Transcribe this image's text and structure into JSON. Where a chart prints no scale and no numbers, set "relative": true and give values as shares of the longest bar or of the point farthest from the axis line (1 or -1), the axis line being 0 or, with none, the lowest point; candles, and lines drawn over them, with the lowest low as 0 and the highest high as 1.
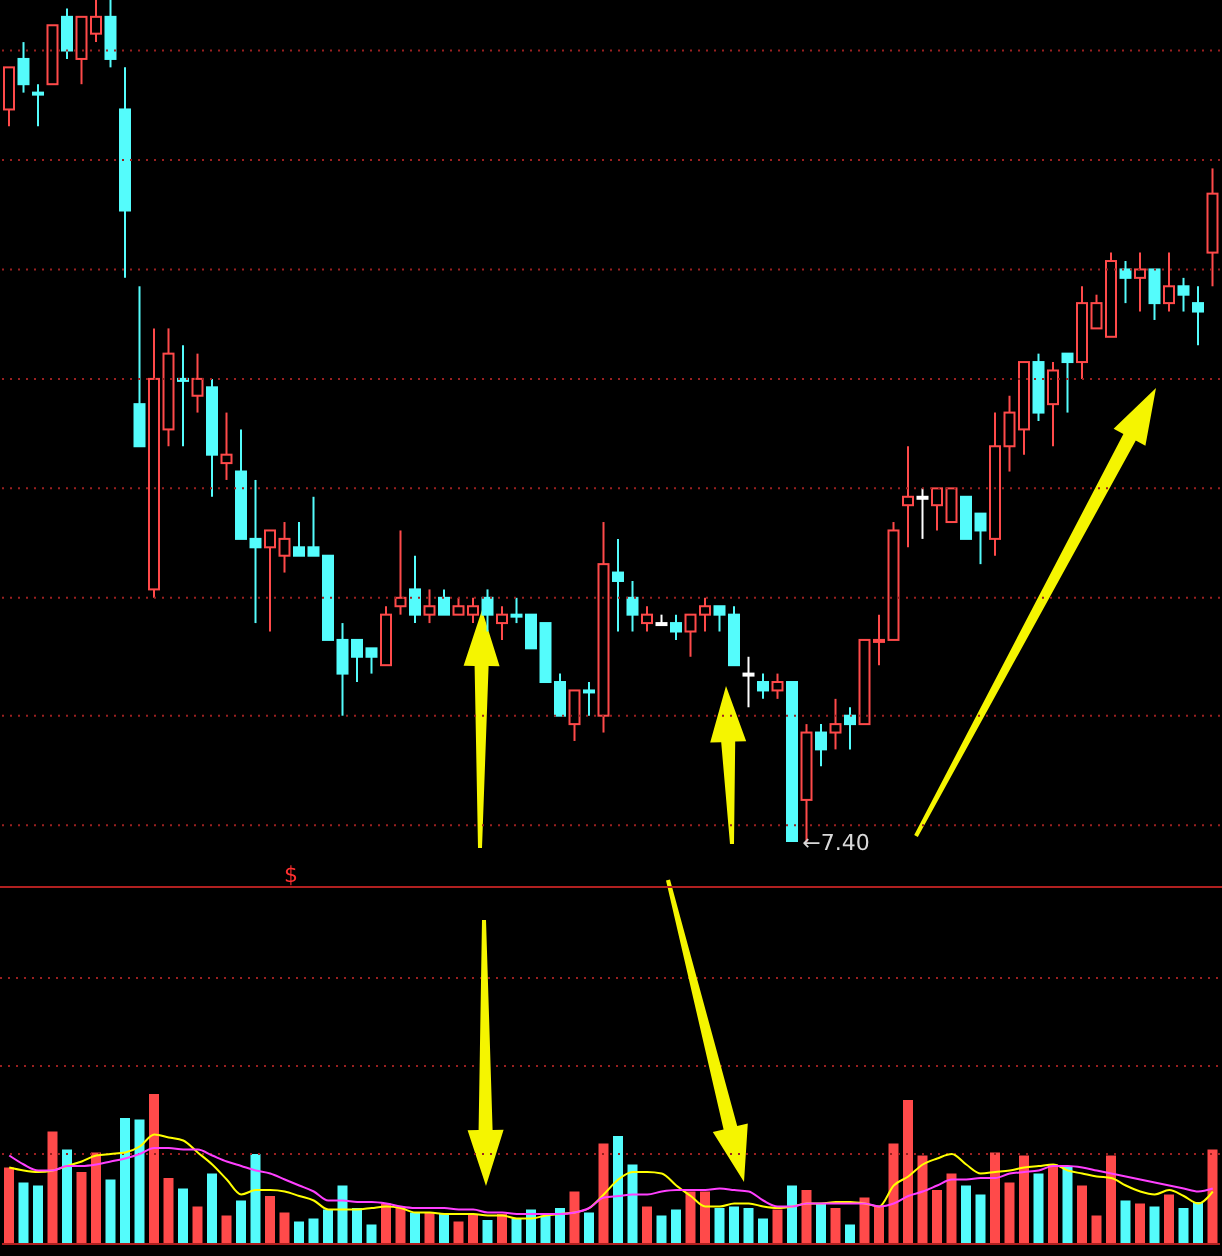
{
  "chart_data": [
    {
      "type": "candlestick",
      "relative": true,
      "tick_labels": false,
      "categories": [
        null,
        null,
        null,
        null,
        null,
        null,
        null,
        null,
        null,
        null,
        null,
        null,
        null,
        null,
        null,
        null,
        null,
        null,
        null,
        null,
        null,
        null,
        null,
        null,
        null,
        null,
        null,
        null,
        null,
        null,
        null,
        null,
        null,
        null,
        null,
        null,
        null,
        null,
        null,
        null,
        null,
        null,
        null,
        null,
        null,
        null,
        null,
        null,
        null,
        null,
        null,
        null,
        null,
        null,
        null,
        null,
        null,
        null,
        null,
        null,
        null,
        null,
        null,
        null,
        null,
        null,
        null,
        null,
        null,
        null,
        null,
        null,
        null,
        null,
        null,
        null,
        null,
        null,
        null,
        null,
        null,
        null,
        null,
        null
      ],
      "ohlc": [
        [
          0.87,
          0.92,
          0.85,
          0.92
        ],
        [
          0.93,
          0.95,
          0.89,
          0.9
        ],
        [
          0.89,
          0.9,
          0.85,
          0.89
        ],
        [
          0.9,
          0.97,
          0.9,
          0.97
        ],
        [
          0.98,
          0.99,
          0.93,
          0.94
        ],
        [
          0.93,
          0.98,
          0.9,
          0.98
        ],
        [
          0.96,
          1,
          0.95,
          0.98
        ],
        [
          0.98,
          1,
          0.92,
          0.93
        ],
        [
          0.87,
          0.92,
          0.67,
          0.75
        ],
        [
          0.52,
          0.66,
          0.47,
          0.47
        ],
        [
          0.3,
          0.61,
          0.29,
          0.55
        ],
        [
          0.49,
          0.61,
          0.47,
          0.58
        ],
        [
          0.55,
          0.59,
          0.47,
          0.55
        ],
        [
          0.53,
          0.58,
          0.51,
          0.55
        ],
        [
          0.54,
          0.55,
          0.41,
          0.46
        ],
        [
          0.45,
          0.51,
          0.43,
          0.46
        ],
        [
          0.44,
          0.49,
          0.36,
          0.36
        ],
        [
          0.36,
          0.43,
          0.26,
          0.35
        ],
        [
          0.35,
          0.37,
          0.25,
          0.37
        ],
        [
          0.34,
          0.38,
          0.32,
          0.36
        ],
        [
          0.35,
          0.38,
          0.34,
          0.34
        ],
        [
          0.35,
          0.41,
          0.34,
          0.34
        ],
        [
          0.34,
          0.34,
          0.24,
          0.24
        ],
        [
          0.24,
          0.26,
          0.15,
          0.2
        ],
        [
          0.24,
          0.24,
          0.19,
          0.22
        ],
        [
          0.23,
          0.23,
          0.2,
          0.22
        ],
        [
          0.21,
          0.28,
          0.21,
          0.27
        ],
        [
          0.28,
          0.37,
          0.27,
          0.29
        ],
        [
          0.3,
          0.34,
          0.26,
          0.27
        ],
        [
          0.27,
          0.3,
          0.26,
          0.28
        ],
        [
          0.29,
          0.3,
          0.27,
          0.27
        ],
        [
          0.27,
          0.29,
          0.27,
          0.28
        ],
        [
          0.27,
          0.29,
          0.26,
          0.28
        ],
        [
          0.29,
          0.3,
          0.25,
          0.27
        ],
        [
          0.26,
          0.28,
          0.24,
          0.27
        ],
        [
          0.27,
          0.29,
          0.26,
          0.27
        ],
        [
          0.27,
          0.27,
          0.23,
          0.23
        ],
        [
          0.26,
          0.26,
          0.19,
          0.19
        ],
        [
          0.19,
          0.2,
          0.15,
          0.15
        ],
        [
          0.14,
          0.18,
          0.12,
          0.18
        ],
        [
          0.18,
          0.19,
          0.15,
          0.18
        ],
        [
          0.15,
          0.38,
          0.13,
          0.33
        ],
        [
          0.32,
          0.36,
          0.25,
          0.31
        ],
        [
          0.29,
          0.31,
          0.25,
          0.27
        ],
        [
          0.26,
          0.28,
          0.25,
          0.27
        ],
        [
          0.26,
          0.27,
          0.26,
          0.26
        ],
        [
          0.26,
          0.27,
          0.24,
          0.25
        ],
        [
          0.25,
          0.27,
          0.22,
          0.27
        ],
        [
          0.27,
          0.29,
          0.25,
          0.28
        ],
        [
          0.28,
          0.28,
          0.25,
          0.27
        ],
        [
          0.27,
          0.28,
          0.21,
          0.21
        ],
        [
          0.2,
          0.22,
          0.16,
          0.2
        ],
        [
          0.19,
          0.2,
          0.17,
          0.18
        ],
        [
          0.18,
          0.2,
          0.17,
          0.19
        ],
        [
          0.19,
          0.19,
          0,
          0
        ],
        [
          0.05,
          0.14,
          0,
          0.13
        ],
        [
          0.13,
          0.14,
          0.09,
          0.11
        ],
        [
          0.13,
          0.17,
          0.11,
          0.14
        ],
        [
          0.15,
          0.16,
          0.11,
          0.14
        ],
        [
          0.14,
          0.24,
          0.14,
          0.24
        ],
        [
          0.24,
          0.27,
          0.21,
          0.24
        ],
        [
          0.24,
          0.38,
          0.24,
          0.37
        ],
        [
          0.4,
          0.47,
          0.35,
          0.41
        ],
        [
          0.41,
          0.42,
          0.36,
          0.41
        ],
        [
          0.4,
          0.42,
          0.37,
          0.42
        ],
        [
          0.38,
          0.42,
          0.38,
          0.42
        ],
        [
          0.41,
          0.41,
          0.36,
          0.36
        ],
        [
          0.39,
          0.39,
          0.33,
          0.37
        ],
        [
          0.36,
          0.51,
          0.34,
          0.47
        ],
        [
          0.47,
          0.53,
          0.44,
          0.51
        ],
        [
          0.49,
          0.57,
          0.46,
          0.57
        ],
        [
          0.57,
          0.58,
          0.5,
          0.51
        ],
        [
          0.52,
          0.57,
          0.47,
          0.56
        ],
        [
          0.58,
          0.58,
          0.51,
          0.57
        ],
        [
          0.57,
          0.66,
          0.55,
          0.64
        ],
        [
          0.61,
          0.65,
          0.61,
          0.64
        ],
        [
          0.6,
          0.7,
          0.6,
          0.69
        ],
        [
          0.68,
          0.69,
          0.64,
          0.67
        ],
        [
          0.67,
          0.7,
          0.63,
          0.68
        ],
        [
          0.68,
          0.68,
          0.62,
          0.64
        ],
        [
          0.64,
          0.7,
          0.63,
          0.66
        ],
        [
          0.66,
          0.67,
          0.63,
          0.65
        ],
        [
          0.64,
          0.66,
          0.59,
          0.63
        ],
        [
          0.7,
          0.8,
          0.66,
          0.77
        ]
      ],
      "colors": [
        "#ff4a4a",
        "#54fcfc",
        "#54fcfc",
        "#ff4a4a",
        "#54fcfc",
        "#ff4a4a",
        "#ff4a4a",
        "#54fcfc",
        "#54fcfc",
        "#54fcfc",
        "#ff4a4a",
        "#ff4a4a",
        "#54fcfc",
        "#ff4a4a",
        "#54fcfc",
        "#ff4a4a",
        "#54fcfc",
        "#54fcfc",
        "#ff4a4a",
        "#ff4a4a",
        "#54fcfc",
        "#54fcfc",
        "#54fcfc",
        "#54fcfc",
        "#54fcfc",
        "#54fcfc",
        "#ff4a4a",
        "#ff4a4a",
        "#54fcfc",
        "#ff4a4a",
        "#54fcfc",
        "#ff4a4a",
        "#ff4a4a",
        "#54fcfc",
        "#ff4a4a",
        "#54fcfc",
        "#54fcfc",
        "#54fcfc",
        "#54fcfc",
        "#ff4a4a",
        "#54fcfc",
        "#ff4a4a",
        "#54fcfc",
        "#54fcfc",
        "#ff4a4a",
        "#ffffff",
        "#54fcfc",
        "#ff4a4a",
        "#ff4a4a",
        "#54fcfc",
        "#54fcfc",
        "#ffffff",
        "#54fcfc",
        "#ff4a4a",
        "#54fcfc",
        "#ff4a4a",
        "#54fcfc",
        "#ff4a4a",
        "#54fcfc",
        "#ff4a4a",
        "#ff4a4a",
        "#ff4a4a",
        "#ff4a4a",
        "#ffffff",
        "#ff4a4a",
        "#ff4a4a",
        "#54fcfc",
        "#54fcfc",
        "#ff4a4a",
        "#ff4a4a",
        "#ff4a4a",
        "#54fcfc",
        "#ff4a4a",
        "#54fcfc",
        "#ff4a4a",
        "#ff4a4a",
        "#ff4a4a",
        "#54fcfc",
        "#ff4a4a",
        "#54fcfc",
        "#ff4a4a",
        "#54fcfc",
        "#54fcfc",
        "#ff4a4a"
      ],
      "ref_lines": [
        {
          "axis": "y",
          "value": 0.94,
          "color": "#9a2020",
          "line_style": "dotted"
        },
        {
          "axis": "y",
          "value": 0.81,
          "color": "#9a2020",
          "line_style": "dotted"
        },
        {
          "axis": "y",
          "value": 0.68,
          "color": "#9a2020",
          "line_style": "dotted"
        },
        {
          "axis": "y",
          "value": 0.55,
          "color": "#9a2020",
          "line_style": "dotted"
        },
        {
          "axis": "y",
          "value": 0.42,
          "color": "#9a2020",
          "line_style": "dotted"
        },
        {
          "axis": "y",
          "value": 0.29,
          "color": "#9a2020",
          "line_style": "dotted"
        },
        {
          "axis": "y",
          "value": 0.15,
          "color": "#9a2020",
          "line_style": "dotted"
        },
        {
          "axis": "y",
          "value": 0.02,
          "color": "#9a2020",
          "line_style": "dotted"
        }
      ],
      "annotations": [
        "←7.40"
      ]
    },
    {
      "type": "bar",
      "relative": true,
      "tick_labels": false,
      "categories": [
        null,
        null,
        null,
        null,
        null,
        null,
        null,
        null,
        null,
        null,
        null,
        null,
        null,
        null,
        null,
        null,
        null,
        null,
        null,
        null,
        null,
        null,
        null,
        null,
        null,
        null,
        null,
        null,
        null,
        null,
        null,
        null,
        null,
        null,
        null,
        null,
        null,
        null,
        null,
        null,
        null,
        null,
        null,
        null,
        null,
        null,
        null,
        null,
        null,
        null,
        null,
        null,
        null,
        null,
        null,
        null,
        null,
        null,
        null,
        null,
        null,
        null,
        null,
        null,
        null,
        null,
        null,
        null,
        null,
        null,
        null,
        null,
        null,
        null,
        null,
        null,
        null,
        null,
        null,
        null,
        null,
        null,
        null,
        null
      ],
      "series": [
        {
          "type": "bar",
          "colors": [
            "#ff4a4a",
            "#54fcfc",
            "#54fcfc",
            "#ff4a4a",
            "#54fcfc",
            "#ff4a4a",
            "#ff4a4a",
            "#54fcfc",
            "#54fcfc",
            "#54fcfc",
            "#ff4a4a",
            "#ff4a4a",
            "#54fcfc",
            "#ff4a4a",
            "#54fcfc",
            "#ff4a4a",
            "#54fcfc",
            "#54fcfc",
            "#ff4a4a",
            "#ff4a4a",
            "#54fcfc",
            "#54fcfc",
            "#54fcfc",
            "#54fcfc",
            "#54fcfc",
            "#54fcfc",
            "#ff4a4a",
            "#ff4a4a",
            "#54fcfc",
            "#ff4a4a",
            "#54fcfc",
            "#ff4a4a",
            "#ff4a4a",
            "#54fcfc",
            "#ff4a4a",
            "#54fcfc",
            "#54fcfc",
            "#54fcfc",
            "#54fcfc",
            "#ff4a4a",
            "#54fcfc",
            "#ff4a4a",
            "#54fcfc",
            "#54fcfc",
            "#ff4a4a",
            "#54fcfc",
            "#54fcfc",
            "#ff4a4a",
            "#ff4a4a",
            "#54fcfc",
            "#54fcfc",
            "#54fcfc",
            "#54fcfc",
            "#ff4a4a",
            "#54fcfc",
            "#ff4a4a",
            "#54fcfc",
            "#ff4a4a",
            "#54fcfc",
            "#ff4a4a",
            "#ff4a4a",
            "#ff4a4a",
            "#ff4a4a",
            "#ff4a4a",
            "#ff4a4a",
            "#ff4a4a",
            "#54fcfc",
            "#54fcfc",
            "#ff4a4a",
            "#ff4a4a",
            "#ff4a4a",
            "#54fcfc",
            "#ff4a4a",
            "#54fcfc",
            "#ff4a4a",
            "#ff4a4a",
            "#ff4a4a",
            "#54fcfc",
            "#ff4a4a",
            "#54fcfc",
            "#ff4a4a",
            "#54fcfc",
            "#54fcfc",
            "#ff4a4a"
          ],
          "values": [
            0.51,
            0.41,
            0.39,
            0.75,
            0.63,
            0.48,
            0.61,
            0.43,
            0.84,
            0.83,
            1,
            0.44,
            0.37,
            0.25,
            0.47,
            0.19,
            0.29,
            0.6,
            0.32,
            0.21,
            0.15,
            0.17,
            0.23,
            0.39,
            0.24,
            0.13,
            0.27,
            0.25,
            0.21,
            0.21,
            0.2,
            0.15,
            0.2,
            0.16,
            0.2,
            0.17,
            0.23,
            0.19,
            0.24,
            0.35,
            0.21,
            0.67,
            0.72,
            0.53,
            0.25,
            0.19,
            0.23,
            0.35,
            0.35,
            0.24,
            0.25,
            0.24,
            0.17,
            0.23,
            0.39,
            0.36,
            0.27,
            0.24,
            0.13,
            0.31,
            0.25,
            0.67,
            0.96,
            0.59,
            0.36,
            0.47,
            0.39,
            0.33,
            0.61,
            0.41,
            0.59,
            0.47,
            0.53,
            0.52,
            0.39,
            0.19,
            0.59,
            0.29,
            0.27,
            0.25,
            0.33,
            0.24,
            0.28,
            0.63
          ]
        },
        {
          "type": "line",
          "color": "#ffff00",
          "values": [
            0.51,
            0.49,
            0.48,
            0.49,
            0.52,
            0.55,
            0.59,
            0.6,
            0.61,
            0.65,
            0.73,
            0.71,
            0.69,
            0.61,
            0.53,
            0.43,
            0.33,
            0.36,
            0.36,
            0.35,
            0.32,
            0.29,
            0.23,
            0.23,
            0.23,
            0.24,
            0.25,
            0.24,
            0.21,
            0.21,
            0.2,
            0.2,
            0.2,
            0.19,
            0.19,
            0.17,
            0.17,
            0.19,
            0.2,
            0.21,
            0.24,
            0.33,
            0.43,
            0.48,
            0.48,
            0.47,
            0.39,
            0.32,
            0.25,
            0.25,
            0.27,
            0.27,
            0.25,
            0.24,
            0.25,
            0.27,
            0.27,
            0.28,
            0.28,
            0.27,
            0.25,
            0.39,
            0.45,
            0.53,
            0.57,
            0.6,
            0.53,
            0.47,
            0.48,
            0.49,
            0.51,
            0.52,
            0.53,
            0.49,
            0.47,
            0.45,
            0.44,
            0.39,
            0.35,
            0.33,
            0.36,
            0.32,
            0.27,
            0.35
          ]
        },
        {
          "type": "line",
          "color": "#ff40ff",
          "values": [
            0.59,
            0.53,
            0.49,
            0.49,
            0.52,
            0.52,
            0.53,
            0.55,
            0.57,
            0.6,
            0.64,
            0.64,
            0.63,
            0.63,
            0.59,
            0.55,
            0.52,
            0.49,
            0.47,
            0.43,
            0.39,
            0.35,
            0.29,
            0.29,
            0.28,
            0.28,
            0.27,
            0.25,
            0.24,
            0.24,
            0.24,
            0.23,
            0.23,
            0.21,
            0.21,
            0.2,
            0.2,
            0.2,
            0.2,
            0.21,
            0.24,
            0.31,
            0.32,
            0.33,
            0.33,
            0.35,
            0.36,
            0.36,
            0.36,
            0.37,
            0.36,
            0.35,
            0.29,
            0.25,
            0.25,
            0.27,
            0.27,
            0.27,
            0.27,
            0.27,
            0.25,
            0.27,
            0.32,
            0.35,
            0.39,
            0.43,
            0.43,
            0.44,
            0.44,
            0.47,
            0.48,
            0.49,
            0.52,
            0.52,
            0.51,
            0.49,
            0.47,
            0.45,
            0.43,
            0.41,
            0.39,
            0.37,
            0.35,
            0.37
          ]
        }
      ],
      "ref_lines": [
        {
          "axis": "y",
          "value": 0.6,
          "color": "#9a2020",
          "line_style": "dotted"
        }
      ],
      "annotations": [
        "$"
      ]
    }
  ]
}
